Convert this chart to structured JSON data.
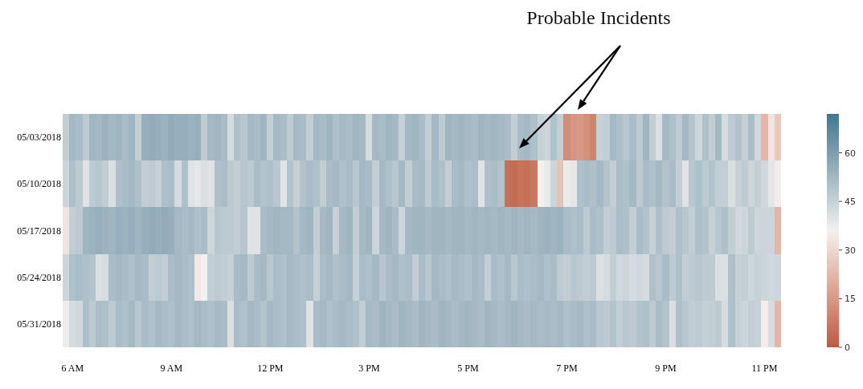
{
  "chart_data": {
    "type": "heatmap",
    "annotations": [
      "Probable Incidents"
    ],
    "categories": [
      null,
      "6 AM",
      null,
      null,
      null,
      null,
      null,
      null,
      null,
      null,
      null,
      null,
      null,
      null,
      null,
      null,
      "9 AM",
      null,
      null,
      null,
      null,
      null,
      null,
      null,
      null,
      null,
      null,
      null,
      null,
      null,
      null,
      "12 PM",
      null,
      null,
      null,
      null,
      null,
      null,
      null,
      null,
      null,
      null,
      null,
      null,
      null,
      null,
      "3 PM",
      null,
      null,
      null,
      null,
      null,
      null,
      null,
      null,
      null,
      null,
      null,
      null,
      null,
      null,
      "5 PM",
      null,
      null,
      null,
      null,
      null,
      null,
      null,
      null,
      null,
      null,
      null,
      null,
      null,
      null,
      "7 PM",
      null,
      null,
      null,
      null,
      null,
      null,
      null,
      null,
      null,
      null,
      null,
      null,
      null,
      null,
      "9 PM",
      null,
      null,
      null,
      null,
      null,
      null,
      null,
      null,
      null,
      null,
      null,
      null,
      null,
      null,
      "11 PM",
      null,
      null
    ],
    "y_categories": [
      "05/03/2018",
      "05/10/2018",
      "05/17/2018",
      "05/24/2018",
      "05/31/2018"
    ],
    "cells": [
      [
        46,
        52,
        51,
        47,
        53,
        52,
        54,
        52,
        53,
        51,
        53,
        46,
        55,
        56,
        55,
        54,
        56,
        55,
        55,
        54,
        55,
        47,
        52,
        53,
        51,
        42,
        50,
        48,
        52,
        51,
        53,
        46,
        52,
        51,
        47,
        52,
        51,
        46,
        52,
        51,
        53,
        50,
        52,
        51,
        53,
        52,
        42,
        52,
        51,
        53,
        52,
        45,
        52,
        53,
        51,
        46,
        52,
        47,
        53,
        52,
        53,
        52,
        51,
        53,
        52,
        53,
        52,
        51,
        46,
        51,
        52,
        50,
        45,
        44,
        50,
        46,
        12,
        14,
        15,
        13,
        10,
        45,
        46,
        52,
        50,
        48,
        51,
        47,
        53,
        46,
        41,
        52,
        50,
        47,
        52,
        49,
        44,
        50,
        46,
        52,
        42,
        47,
        49,
        45,
        51,
        43,
        22,
        33,
        26
      ],
      [
        44,
        50,
        47,
        40,
        47,
        48,
        46,
        41,
        50,
        51,
        52,
        50,
        46,
        47,
        45,
        50,
        51,
        42,
        50,
        40,
        39,
        41,
        40,
        50,
        51,
        47,
        46,
        48,
        47,
        51,
        49,
        50,
        48,
        40,
        49,
        45,
        49,
        51,
        50,
        46,
        51,
        52,
        50,
        51,
        48,
        52,
        51,
        46,
        52,
        50,
        48,
        52,
        46,
        51,
        52,
        47,
        51,
        50,
        46,
        51,
        52,
        50,
        51,
        40,
        50,
        51,
        49,
        5,
        4,
        6,
        5,
        7,
        36,
        38,
        44,
        25,
        38,
        39,
        50,
        51,
        50,
        52,
        49,
        46,
        51,
        50,
        52,
        47,
        51,
        50,
        52,
        49,
        51,
        46,
        40,
        48,
        50,
        47,
        49,
        46,
        46,
        41,
        45,
        47,
        44,
        46,
        43,
        39,
        35
      ],
      [
        33,
        46,
        47,
        53,
        54,
        55,
        54,
        53,
        55,
        54,
        55,
        53,
        55,
        56,
        55,
        56,
        55,
        52,
        51,
        52,
        50,
        51,
        44,
        48,
        47,
        47,
        46,
        48,
        40,
        40,
        51,
        52,
        53,
        52,
        52,
        49,
        52,
        53,
        46,
        52,
        53,
        45,
        52,
        53,
        46,
        52,
        53,
        44,
        52,
        53,
        51,
        44,
        52,
        53,
        53,
        52,
        53,
        53,
        52,
        53,
        53,
        52,
        53,
        52,
        53,
        52,
        53,
        52,
        53,
        52,
        53,
        52,
        53,
        54,
        53,
        54,
        51,
        50,
        51,
        47,
        51,
        50,
        46,
        47,
        51,
        50,
        46,
        51,
        49,
        45,
        50,
        47,
        46,
        50,
        48,
        46,
        50,
        49,
        45,
        48,
        50,
        46,
        43,
        44,
        47,
        44,
        44,
        44,
        22
      ],
      [
        44,
        50,
        51,
        50,
        49,
        41,
        42,
        51,
        52,
        51,
        50,
        52,
        51,
        46,
        47,
        46,
        51,
        52,
        51,
        50,
        34,
        36,
        46,
        47,
        46,
        45,
        51,
        52,
        47,
        51,
        52,
        48,
        51,
        50,
        52,
        51,
        50,
        51,
        45,
        51,
        52,
        50,
        51,
        52,
        45,
        51,
        50,
        52,
        48,
        51,
        52,
        50,
        51,
        46,
        51,
        48,
        52,
        51,
        50,
        52,
        51,
        50,
        52,
        51,
        46,
        51,
        50,
        52,
        48,
        51,
        50,
        51,
        52,
        50,
        51,
        47,
        46,
        48,
        47,
        46,
        47,
        41,
        42,
        46,
        43,
        44,
        42,
        43,
        42,
        50,
        48,
        51,
        47,
        50,
        46,
        47,
        48,
        47,
        47,
        41,
        41,
        50,
        45,
        46,
        44,
        45,
        44,
        43,
        44
      ],
      [
        37,
        42,
        43,
        50,
        47,
        51,
        50,
        47,
        51,
        50,
        52,
        48,
        51,
        50,
        52,
        51,
        50,
        52,
        51,
        50,
        52,
        51,
        50,
        52,
        51,
        41,
        51,
        50,
        52,
        51,
        49,
        52,
        51,
        50,
        52,
        51,
        50,
        40,
        51,
        52,
        50,
        51,
        52,
        51,
        50,
        46,
        52,
        51,
        53,
        52,
        51,
        53,
        52,
        51,
        53,
        52,
        51,
        53,
        52,
        51,
        52,
        53,
        52,
        51,
        53,
        52,
        51,
        52,
        53,
        52,
        51,
        52,
        51,
        52,
        51,
        52,
        50,
        51,
        52,
        50,
        51,
        48,
        47,
        49,
        46,
        48,
        47,
        49,
        50,
        47,
        51,
        49,
        41,
        50,
        48,
        46,
        47,
        45,
        46,
        47,
        42,
        50,
        45,
        44,
        46,
        45,
        35,
        42,
        22
      ]
    ],
    "clim": [
      0,
      72
    ],
    "cticks": [
      0,
      15,
      30,
      45,
      60
    ],
    "colors": [
      "#bb5a41",
      "#f3f1f0",
      "#40778f"
    ]
  }
}
